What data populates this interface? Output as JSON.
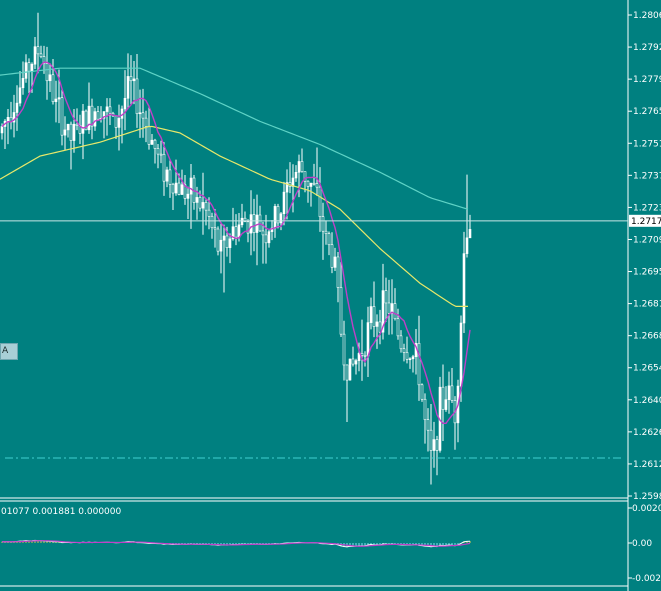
{
  "chart": {
    "price_labels": [
      "1.2806",
      "1.2792",
      "1.2779",
      "1.2765",
      "1.2751",
      "1.2737",
      "1.2723",
      "1.2709",
      "1.2695",
      "1.2681",
      "1.2668",
      "1.2654",
      "1.2640",
      "1.2626",
      "1.2612",
      "1.2598"
    ],
    "current_price": "1.2717",
    "left_tag": "A",
    "indicator": {
      "header": "01077 0.001881 0.000000",
      "levels": [
        "0.0020",
        "0.00",
        "-0.0020"
      ]
    },
    "colors": {
      "background": "#008080",
      "candles": "#ffffff",
      "ma_slow": "#5fd3c6",
      "ma_mid": "#e8e86a",
      "ma_fast": "#c040c8",
      "hist_up": "#d4c84a",
      "hist_down": "#7fe0ee",
      "osc_line": "#ffffff",
      "signal_line": "#c040c8",
      "price_line": "#c8e6e6",
      "support_line": "#3fd0d0"
    }
  }
}
